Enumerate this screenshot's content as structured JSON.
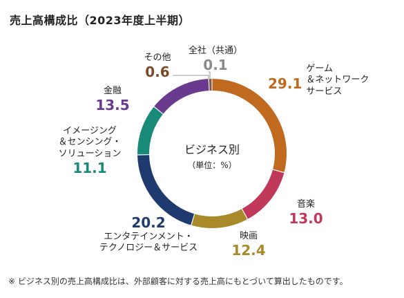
{
  "title": "売上高構成比（2023年度上半期）",
  "center": {
    "line1": "ビジネス別",
    "line2": "（単位：%）"
  },
  "note": "※ ビジネス別の売上高構成比は、外部顧客に対する売上高にもとづいて算出したものです。",
  "chart_data": {
    "type": "pie",
    "title": "売上高構成比（2023年度上半期）",
    "unit": "%",
    "slices": [
      {
        "name": "ゲーム＆ネットワークサービス",
        "label_lines": [
          "ゲーム",
          "＆ネットワーク",
          "サービス"
        ],
        "value": 29.1,
        "display": "29.1",
        "color": "#c06a1f"
      },
      {
        "name": "音楽",
        "label_lines": [
          "音楽"
        ],
        "value": 13.0,
        "display": "13.0",
        "color": "#c0395a"
      },
      {
        "name": "映画",
        "label_lines": [
          "映画"
        ],
        "value": 12.4,
        "display": "12.4",
        "color": "#a98a2a"
      },
      {
        "name": "エンタテインメント・テクノロジー＆サービス",
        "label_lines": [
          "エンタテインメント・",
          "テクノロジー＆サービス"
        ],
        "value": 20.2,
        "display": "20.2",
        "color": "#1f3a6e"
      },
      {
        "name": "イメージング＆センシング・ソリューション",
        "label_lines": [
          "イメージング",
          "＆センシング・",
          "ソリューション"
        ],
        "value": 11.1,
        "display": "11.1",
        "color": "#1a8a78"
      },
      {
        "name": "金融",
        "label_lines": [
          "金融"
        ],
        "value": 13.5,
        "display": "13.5",
        "color": "#6a3a8e"
      },
      {
        "name": "その他",
        "label_lines": [
          "その他"
        ],
        "value": 0.6,
        "display": "0.6",
        "color": "#7a4a2a"
      },
      {
        "name": "全社（共通）",
        "label_lines": [
          "全社（共通）"
        ],
        "value": 0.1,
        "display": "0.1",
        "color": "#8a8a8a"
      }
    ]
  }
}
